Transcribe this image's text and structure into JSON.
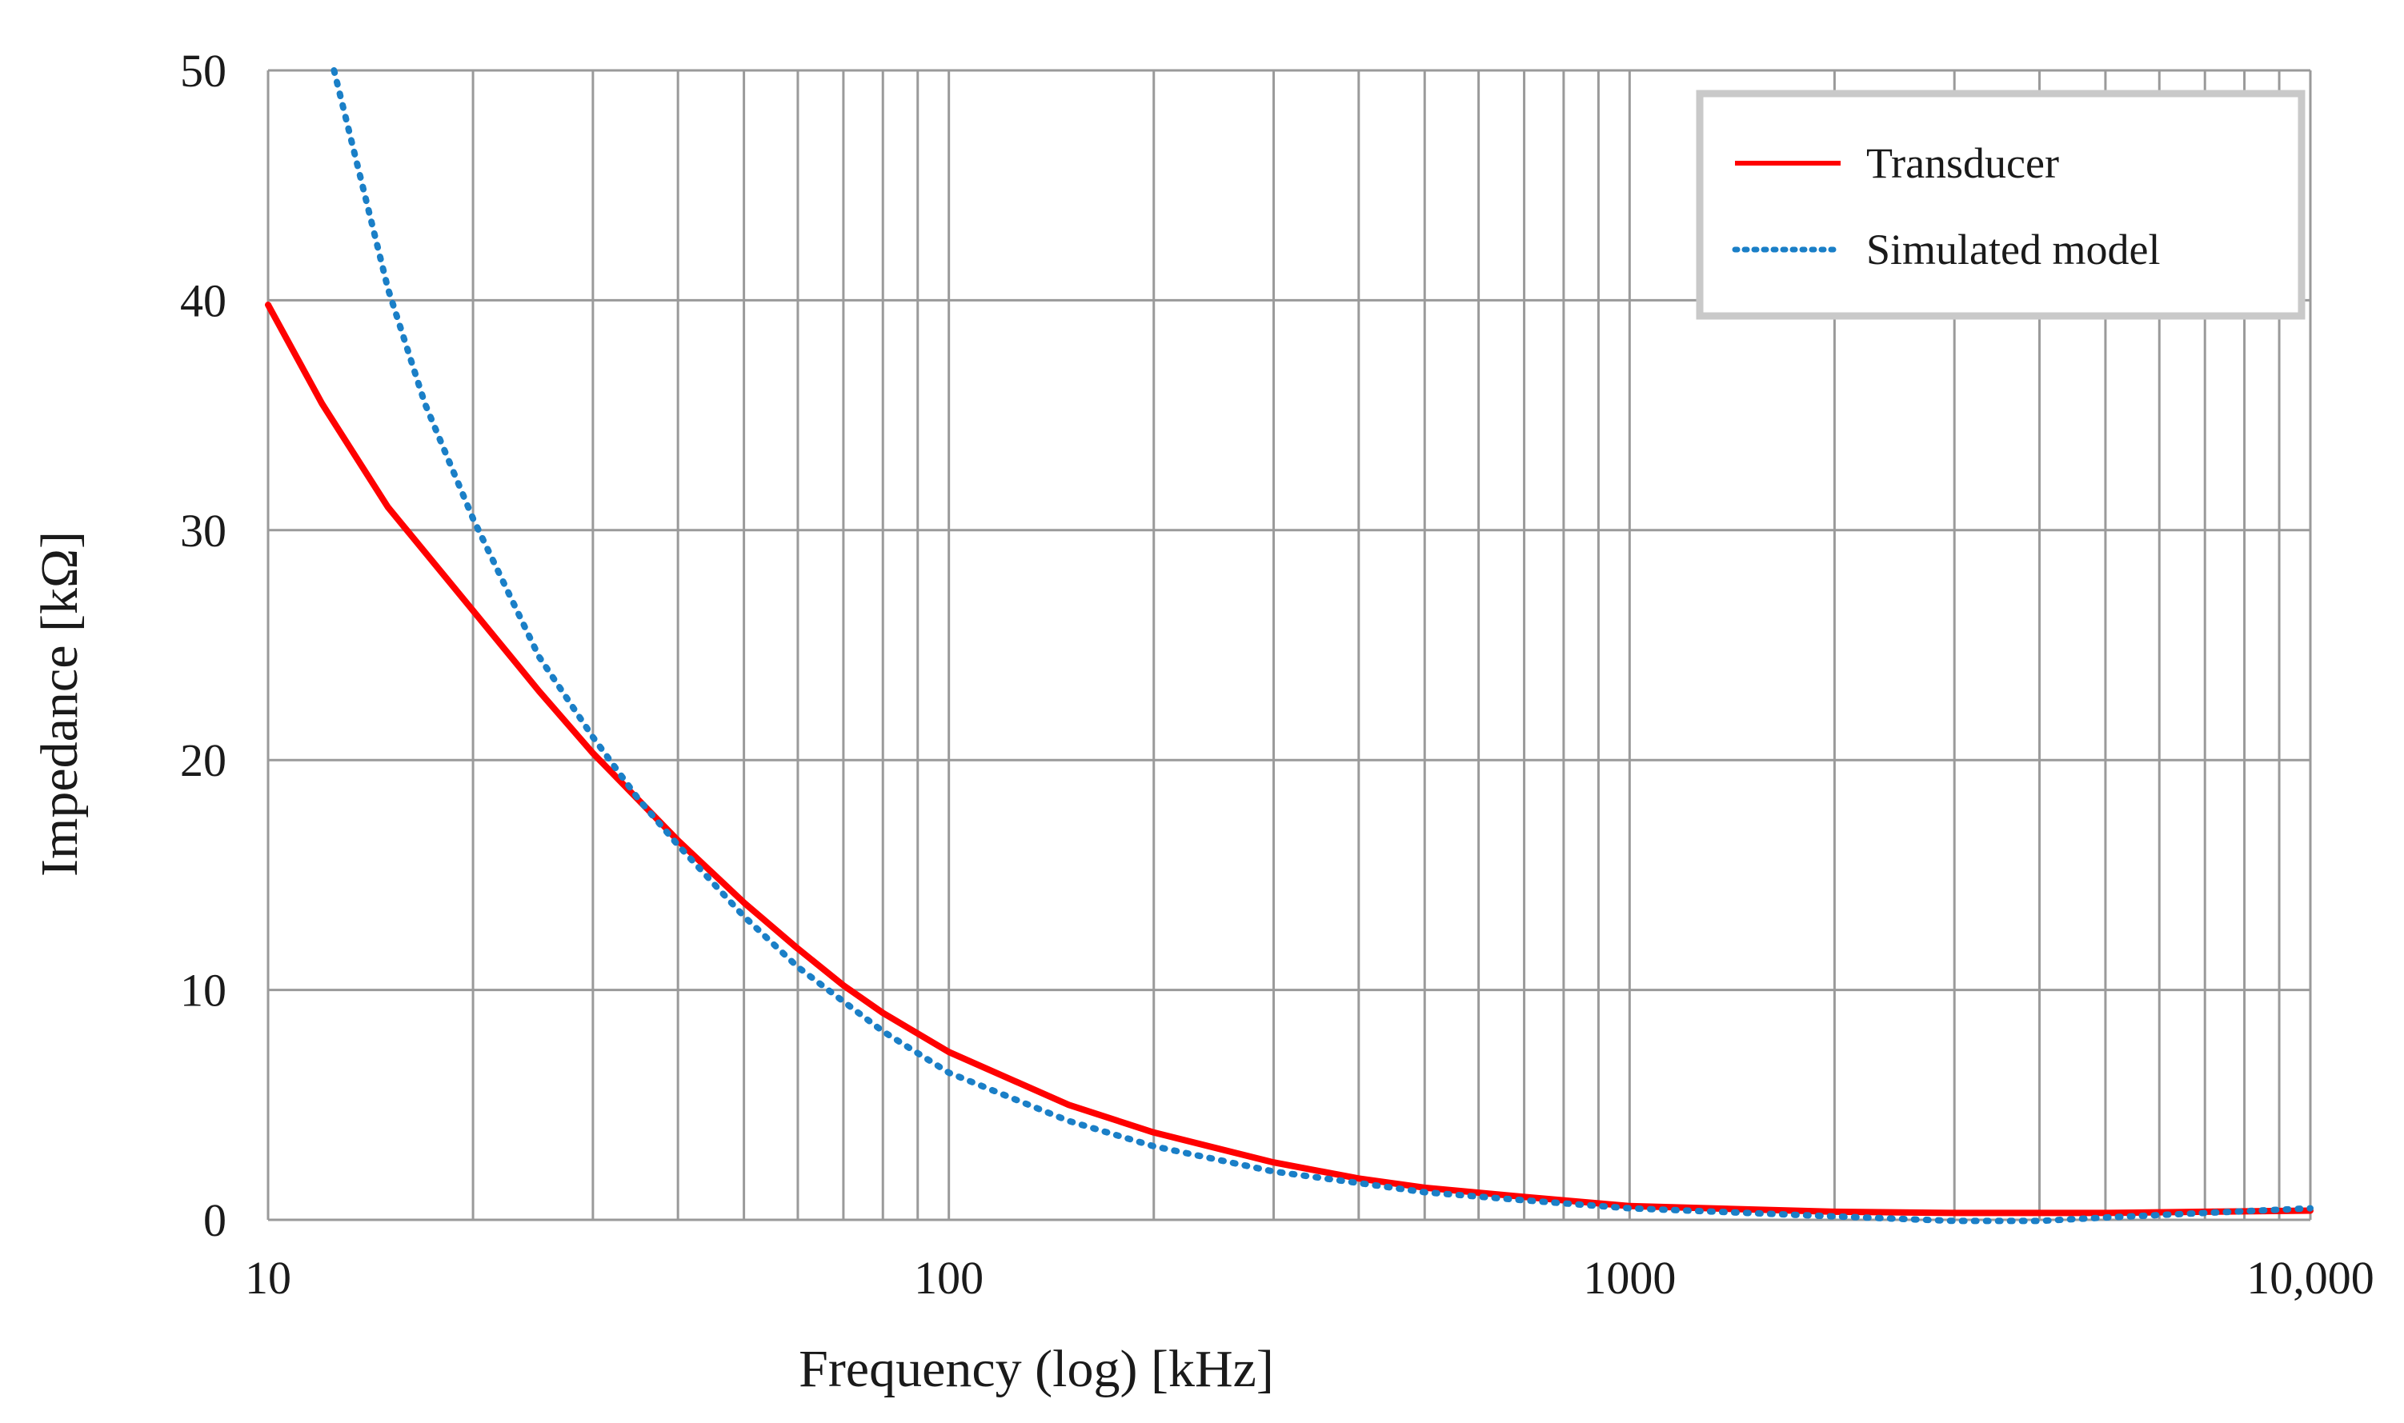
{
  "chart_data": {
    "type": "line",
    "title": "",
    "xlabel": "Frequency (log) [kHz]",
    "ylabel": "Impedance [kΩ]",
    "xscale": "log",
    "xlim": [
      10,
      10000
    ],
    "ylim": [
      0,
      50
    ],
    "grid": true,
    "legend_position": "top-right",
    "x_ticks": [
      {
        "value": 10,
        "label": "10"
      },
      {
        "value": 100,
        "label": "100"
      },
      {
        "value": 1000,
        "label": "1000"
      },
      {
        "value": 10000,
        "label": "10,000"
      }
    ],
    "y_ticks": [
      {
        "value": 0,
        "label": "0"
      },
      {
        "value": 10,
        "label": "10"
      },
      {
        "value": 20,
        "label": "20"
      },
      {
        "value": 30,
        "label": "30"
      },
      {
        "value": 40,
        "label": "40"
      },
      {
        "value": 50,
        "label": "50"
      }
    ],
    "series": [
      {
        "name": "Transducer",
        "color": "#ff0000",
        "style": "solid",
        "x": [
          10,
          12,
          15,
          20,
          25,
          30,
          40,
          50,
          60,
          70,
          80,
          100,
          150,
          200,
          300,
          400,
          500,
          700,
          1000,
          2000,
          3000,
          5000,
          7000,
          10000
        ],
        "y": [
          39.8,
          35.5,
          31,
          26.5,
          23,
          20.3,
          16.5,
          13.8,
          11.8,
          10.2,
          9.0,
          7.3,
          5.0,
          3.8,
          2.5,
          1.8,
          1.4,
          1.0,
          0.6,
          0.35,
          0.3,
          0.3,
          0.35,
          0.4
        ]
      },
      {
        "name": "Simulated model",
        "color": "#1a7fc7",
        "style": "dotted",
        "x": [
          12.5,
          15,
          17,
          20,
          25,
          30,
          35,
          40,
          50,
          60,
          70,
          80,
          100,
          150,
          200,
          300,
          400,
          500,
          700,
          1000,
          2000,
          3000,
          4000,
          5000,
          7000,
          10000
        ],
        "y": [
          50,
          40.5,
          35.5,
          30.5,
          24.5,
          21,
          18.3,
          16.3,
          13.2,
          11.0,
          9.5,
          8.2,
          6.4,
          4.3,
          3.2,
          2.1,
          1.6,
          1.2,
          0.85,
          0.5,
          0.15,
          -0.05,
          -0.05,
          0.1,
          0.3,
          0.5
        ]
      }
    ]
  }
}
